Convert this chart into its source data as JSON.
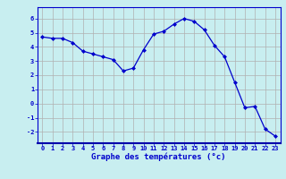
{
  "x": [
    0,
    1,
    2,
    3,
    4,
    5,
    6,
    7,
    8,
    9,
    10,
    11,
    12,
    13,
    14,
    15,
    16,
    17,
    18,
    19,
    20,
    21,
    22,
    23
  ],
  "y": [
    4.7,
    4.6,
    4.6,
    4.3,
    3.7,
    3.5,
    3.3,
    3.1,
    2.3,
    2.5,
    3.8,
    4.9,
    5.1,
    5.6,
    6.0,
    5.8,
    5.2,
    4.1,
    3.3,
    1.5,
    -0.3,
    -0.2,
    -1.8,
    -2.3
  ],
  "line_color": "#0000cc",
  "marker": "D",
  "markersize": 2.0,
  "linewidth": 0.9,
  "xlabel": "Graphe des températures (°c)",
  "xlabel_fontsize": 6.5,
  "xlabel_color": "#0000cc",
  "xlabel_fontweight": "bold",
  "ylabel_ticks": [
    -2,
    -1,
    0,
    1,
    2,
    3,
    4,
    5,
    6
  ],
  "xtick_labels": [
    "0",
    "1",
    "2",
    "3",
    "4",
    "5",
    "6",
    "7",
    "8",
    "9",
    "10",
    "11",
    "12",
    "13",
    "14",
    "15",
    "16",
    "17",
    "18",
    "19",
    "20",
    "21",
    "22",
    "23"
  ],
  "ylim": [
    -2.8,
    6.8
  ],
  "xlim": [
    -0.5,
    23.5
  ],
  "bg_color": "#c8eef0",
  "grid_color": "#b0b0b0",
  "grid_color_minor": "#d0d0d0",
  "tick_color": "#0000cc",
  "tick_fontsize": 5.0,
  "spine_color": "#0000cc"
}
